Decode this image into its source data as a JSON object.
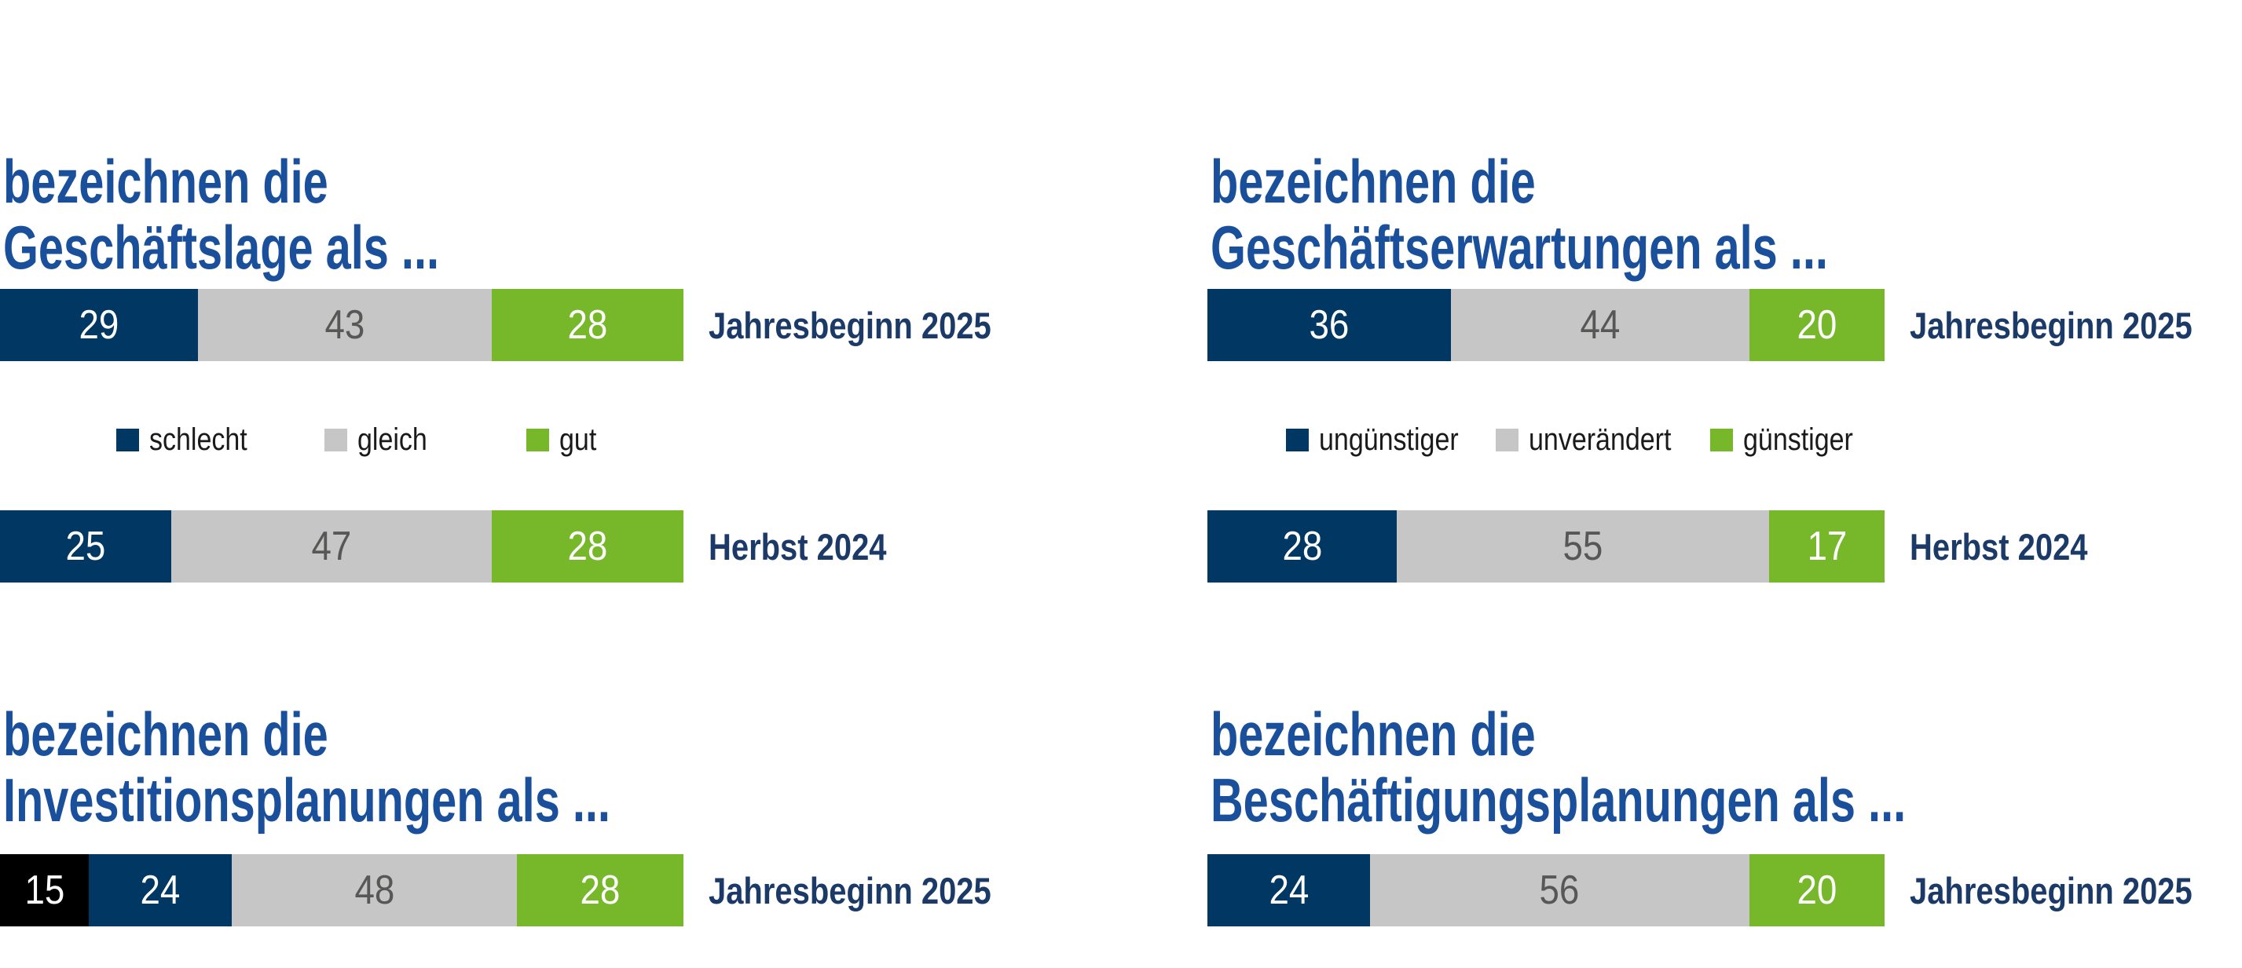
{
  "colors": {
    "title_blue": "#1A4F9C",
    "label_navy": "#1B3A68",
    "navy": "#003763",
    "gray": "#C6C6C6",
    "green": "#76B82A",
    "black": "#000000",
    "gray_text": "#575756",
    "legend_text": "#1A1A1A"
  },
  "chart_data": [
    {
      "id": "geschaeftslage",
      "type": "bar",
      "title_lines": [
        "bezeichnen die",
        "Geschäftslage als ..."
      ],
      "legend": [
        {
          "label": "schlecht",
          "color": "navy"
        },
        {
          "label": "gleich",
          "color": "gray"
        },
        {
          "label": "gut",
          "color": "green"
        }
      ],
      "rows": [
        {
          "label": "Jahresbeginn 2025",
          "segments": [
            {
              "value": 29,
              "color": "navy"
            },
            {
              "value": 43,
              "color": "gray"
            },
            {
              "value": 28,
              "color": "green"
            }
          ]
        },
        {
          "label": "Herbst 2024",
          "segments": [
            {
              "value": 25,
              "color": "navy"
            },
            {
              "value": 47,
              "color": "gray"
            },
            {
              "value": 28,
              "color": "green"
            }
          ]
        }
      ]
    },
    {
      "id": "geschaeftserwartungen",
      "type": "bar",
      "title_lines": [
        "bezeichnen die",
        "Geschäftserwartungen als ..."
      ],
      "legend": [
        {
          "label": "ungünstiger",
          "color": "navy"
        },
        {
          "label": "unverändert",
          "color": "gray"
        },
        {
          "label": "günstiger",
          "color": "green"
        }
      ],
      "rows": [
        {
          "label": "Jahresbeginn 2025",
          "segments": [
            {
              "value": 36,
              "color": "navy"
            },
            {
              "value": 44,
              "color": "gray"
            },
            {
              "value": 20,
              "color": "green"
            }
          ]
        },
        {
          "label": "Herbst 2024",
          "segments": [
            {
              "value": 28,
              "color": "navy"
            },
            {
              "value": 55,
              "color": "gray"
            },
            {
              "value": 17,
              "color": "green"
            }
          ]
        }
      ]
    },
    {
      "id": "investitionsplanungen",
      "type": "bar",
      "title_lines": [
        "bezeichnen die",
        "Investitionsplanungen als ..."
      ],
      "legend": [],
      "rows": [
        {
          "label": "Jahresbeginn 2025",
          "segments": [
            {
              "value": 15,
              "color": "black"
            },
            {
              "value": 24,
              "color": "navy"
            },
            {
              "value": 48,
              "color": "gray"
            },
            {
              "value": 28,
              "color": "green"
            }
          ]
        }
      ]
    },
    {
      "id": "beschaeftigungsplanungen",
      "type": "bar",
      "title_lines": [
        "bezeichnen die",
        "Beschäftigungsplanungen als ..."
      ],
      "legend": [],
      "rows": [
        {
          "label": "Jahresbeginn 2025",
          "segments": [
            {
              "value": 24,
              "color": "navy"
            },
            {
              "value": 56,
              "color": "gray"
            },
            {
              "value": 20,
              "color": "green"
            }
          ]
        }
      ]
    }
  ]
}
